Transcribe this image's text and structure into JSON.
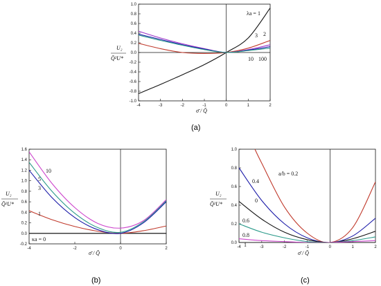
{
  "chart_data": [
    {
      "id": "a",
      "type": "line",
      "caption": "(a)",
      "xlabel": "σ̄ / Q̄",
      "ylabel_top": "U₂",
      "ylabel_bottom": "Q̄²U*",
      "xlim": [
        -4,
        2
      ],
      "ylim": [
        -1.0,
        1.0
      ],
      "xticks": [
        "-4",
        "-3",
        "-2",
        "-1",
        "0",
        "1",
        "2"
      ],
      "yticks": [
        "-1.0",
        "-0.8",
        "-0.6",
        "-0.4",
        "-0.2",
        "0.0",
        "0.2",
        "0.4",
        "0.6",
        "0.8",
        "1.0"
      ],
      "ytick_values": [
        -1.0,
        -0.8,
        -0.6,
        -0.4,
        -0.2,
        0.0,
        0.2,
        0.4,
        0.6,
        0.8,
        1.0
      ],
      "annotations": [
        "λa = 1",
        "2",
        "3",
        "10",
        "100"
      ],
      "series": [
        {
          "color": "#111111",
          "x": [
            -4,
            -3,
            -2,
            -1,
            0,
            1,
            2
          ],
          "values": [
            -0.85,
            -0.66,
            -0.46,
            -0.25,
            0.0,
            0.3,
            0.92
          ]
        },
        {
          "color": "#c0392b",
          "x": [
            -4,
            -3,
            -2,
            -1,
            0,
            1,
            2
          ],
          "values": [
            0.19,
            0.08,
            0.0,
            -0.02,
            0.0,
            0.09,
            0.25
          ]
        },
        {
          "color": "#9b30c8",
          "x": [
            -4,
            -3,
            -2,
            -1,
            0,
            1,
            2
          ],
          "values": [
            0.44,
            0.3,
            0.18,
            0.08,
            0.0,
            0.06,
            0.16
          ]
        },
        {
          "color": "#1a1aa8",
          "x": [
            -4,
            -3,
            -2,
            -1,
            0,
            1,
            2
          ],
          "values": [
            0.38,
            0.27,
            0.16,
            0.07,
            0.0,
            0.05,
            0.12
          ]
        },
        {
          "color": "#2a9a8a",
          "x": [
            -4,
            -3,
            -2,
            -1,
            0,
            1,
            2
          ],
          "values": [
            0.36,
            0.25,
            0.15,
            0.06,
            0.0,
            0.04,
            0.09
          ]
        }
      ]
    },
    {
      "id": "b",
      "type": "line",
      "caption": "(b)",
      "xlabel": "σ̄ / Q̄",
      "ylabel_top": "U₂",
      "ylabel_bottom": "Q̄²U*",
      "xlim": [
        -4,
        2
      ],
      "ylim": [
        -0.2,
        1.6
      ],
      "xticks": [
        "-4",
        "-2",
        "0",
        "2"
      ],
      "xtick_values": [
        -4,
        -2,
        0,
        2
      ],
      "yticks": [
        "-0.2",
        "0.0",
        "0.2",
        "0.4",
        "0.6",
        "0.8",
        "1.0",
        "1.2",
        "1.4",
        "1.6"
      ],
      "ytick_values": [
        -0.2,
        0.0,
        0.2,
        0.4,
        0.6,
        0.8,
        1.0,
        1.2,
        1.4,
        1.6
      ],
      "annotations": [
        "10",
        "5",
        "3",
        "1",
        "κa = 0"
      ],
      "series": [
        {
          "color": "#111111",
          "x": [
            -4,
            -2,
            0,
            2
          ],
          "values": [
            0.0,
            0.0,
            0.0,
            0.0
          ]
        },
        {
          "color": "#c0392b",
          "x": [
            -4,
            -3,
            -2,
            -1,
            0,
            1,
            2
          ],
          "values": [
            0.43,
            0.26,
            0.13,
            0.04,
            0.0,
            0.05,
            0.14
          ]
        },
        {
          "color": "#1a1aa8",
          "x": [
            -4,
            -3,
            -2,
            -1,
            0,
            1,
            2
          ],
          "values": [
            1.2,
            0.68,
            0.3,
            0.07,
            0.0,
            0.2,
            0.6
          ]
        },
        {
          "color": "#2a9a8a",
          "x": [
            -4,
            -3,
            -2,
            -1,
            0,
            1,
            2
          ],
          "values": [
            1.35,
            0.8,
            0.38,
            0.11,
            0.02,
            0.22,
            0.62
          ]
        },
        {
          "color": "#cc44cc",
          "x": [
            -4,
            -3,
            -2,
            -1,
            0,
            1,
            2
          ],
          "values": [
            1.55,
            0.95,
            0.49,
            0.19,
            0.1,
            0.24,
            0.64
          ]
        }
      ]
    },
    {
      "id": "c",
      "type": "line",
      "caption": "(c)",
      "xlabel": "σ̄ / Q̄",
      "ylabel_top": "U₂",
      "ylabel_bottom": "Q̄²U*",
      "xlim": [
        -4,
        2
      ],
      "ylim": [
        0.0,
        1.0
      ],
      "xticks": [
        "-4",
        "-3",
        "-2",
        "-1",
        "0",
        "1",
        "2"
      ],
      "yticks": [
        "0.0",
        "0.2",
        "0.4",
        "0.6",
        "0.8",
        "1.0"
      ],
      "ytick_values": [
        0.0,
        0.2,
        0.4,
        0.6,
        0.8,
        1.0
      ],
      "annotations": [
        "a/b = 0.2",
        "0.4",
        "0",
        "0.6",
        "0.8",
        "1"
      ],
      "series": [
        {
          "color": "#c0392b",
          "x": [
            -3.3,
            -3,
            -2,
            -1,
            0,
            1,
            2
          ],
          "values": [
            1.0,
            0.85,
            0.38,
            0.1,
            0.0,
            0.16,
            0.65
          ]
        },
        {
          "color": "#1a1aa8",
          "x": [
            -4,
            -3,
            -2,
            -1,
            0,
            1,
            2
          ],
          "values": [
            0.8,
            0.45,
            0.2,
            0.05,
            0.0,
            0.07,
            0.26
          ]
        },
        {
          "color": "#111111",
          "x": [
            -4,
            -3,
            -2,
            -1,
            0,
            1,
            2
          ],
          "values": [
            0.44,
            0.25,
            0.11,
            0.03,
            0.0,
            0.04,
            0.12
          ]
        },
        {
          "color": "#2a9a8a",
          "x": [
            -4,
            -3,
            -2,
            -1,
            0,
            1,
            2
          ],
          "values": [
            0.2,
            0.11,
            0.05,
            0.01,
            0.0,
            0.02,
            0.06
          ]
        },
        {
          "color": "#cc44cc",
          "x": [
            -4,
            -3,
            -2,
            -1,
            0,
            1,
            2
          ],
          "values": [
            0.04,
            0.02,
            0.01,
            0.0,
            0.0,
            0.01,
            0.02
          ]
        }
      ]
    }
  ]
}
